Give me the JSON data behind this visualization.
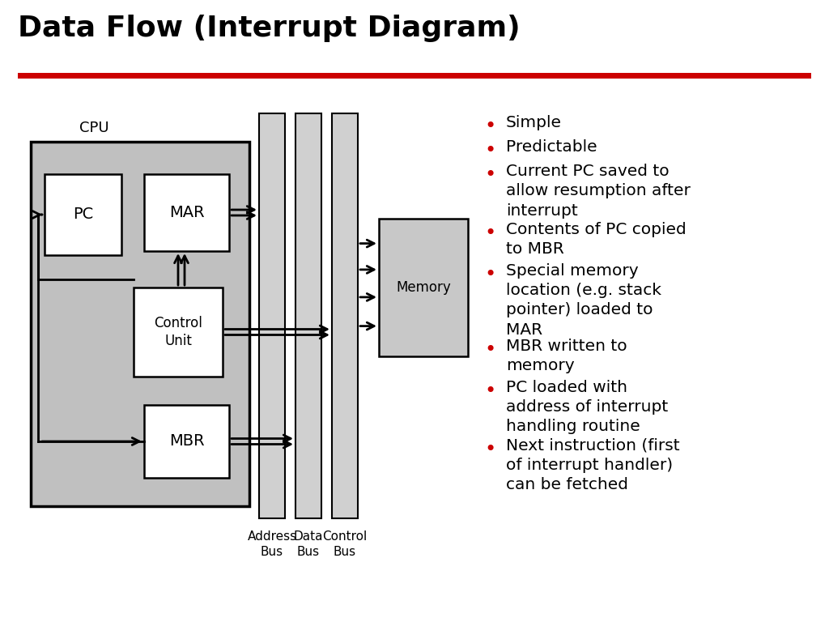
{
  "title": "Data Flow (Interrupt Diagram)",
  "title_fontsize": 26,
  "title_color": "#000000",
  "underline_color": "#cc0000",
  "background_color": "#ffffff",
  "bullet_color": "#cc0000",
  "bullet_text_color": "#000000",
  "bullet_fontsize": 14.5,
  "bullets": [
    "Simple",
    "Predictable",
    "Current PC saved to\nallow resumption after\ninterrupt",
    "Contents of PC copied\nto MBR",
    "Special memory\nlocation (e.g. stack\npointer) loaded to\nMAR",
    "MBR written to\nmemory",
    "PC loaded with\naddress of interrupt\nhandling routine",
    "Next instruction (first\nof interrupt handler)\ncan be fetched"
  ],
  "cpu_fill": "#c0c0c0",
  "box_fill": "#ffffff",
  "memory_fill": "#c8c8c8",
  "bus_fill": "#d0d0d0"
}
